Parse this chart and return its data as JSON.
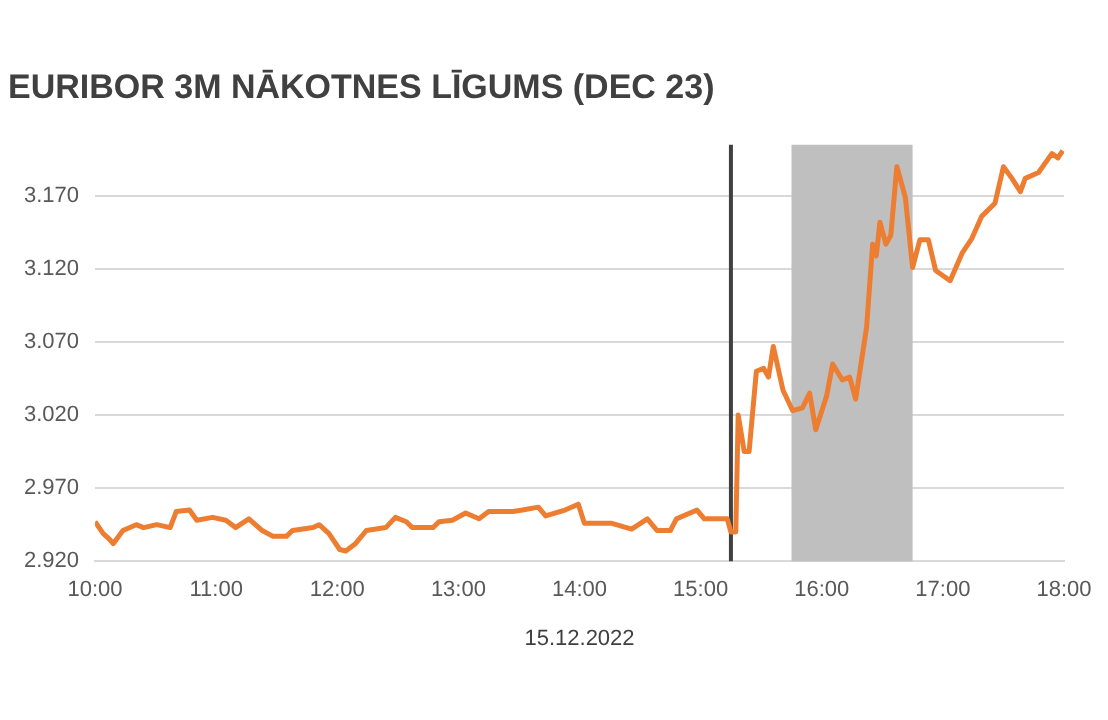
{
  "chart_data": {
    "type": "line",
    "title": "EURIBOR 3M NĀKOTNES LĪGUMS (DEC 23)",
    "xlabel": "15.12.2022",
    "x": [
      10.0,
      10.066,
      10.12,
      10.15,
      10.23,
      10.34,
      10.4,
      10.51,
      10.62,
      10.67,
      10.78,
      10.84,
      10.97,
      11.08,
      11.16,
      11.27,
      11.38,
      11.47,
      11.58,
      11.63,
      11.8,
      11.85,
      11.93,
      12.02,
      12.07,
      12.15,
      12.24,
      12.4,
      12.48,
      12.57,
      12.62,
      12.79,
      12.84,
      12.95,
      13.06,
      13.17,
      13.25,
      13.45,
      13.53,
      13.66,
      13.72,
      13.88,
      13.99,
      14.04,
      14.26,
      14.43,
      14.56,
      14.64,
      14.75,
      14.8,
      14.97,
      15.03,
      15.22,
      15.25,
      15.29,
      15.31,
      15.36,
      15.4,
      15.46,
      15.52,
      15.56,
      15.6,
      15.68,
      15.76,
      15.84,
      15.9,
      15.95,
      16.04,
      16.09,
      16.17,
      16.23,
      16.28,
      16.37,
      16.42,
      16.45,
      16.48,
      16.53,
      16.57,
      16.62,
      16.69,
      16.75,
      16.81,
      16.88,
      16.94,
      17.06,
      17.16,
      17.24,
      17.32,
      17.43,
      17.5,
      17.57,
      17.64,
      17.68,
      17.79,
      17.9,
      17.95,
      17.99
    ],
    "series": [
      {
        "color": "#ed7d31",
        "values": [
          2.947,
          2.939,
          2.935,
          2.932,
          2.941,
          2.945,
          2.943,
          2.945,
          2.943,
          2.954,
          2.955,
          2.948,
          2.95,
          2.948,
          2.943,
          2.949,
          2.941,
          2.937,
          2.937,
          2.941,
          2.943,
          2.945,
          2.939,
          2.928,
          2.927,
          2.932,
          2.941,
          2.943,
          2.95,
          2.947,
          2.943,
          2.943,
          2.947,
          2.948,
          2.953,
          2.949,
          2.954,
          2.954,
          2.955,
          2.957,
          2.951,
          2.955,
          2.959,
          2.946,
          2.946,
          2.942,
          2.949,
          2.941,
          2.941,
          2.949,
          2.955,
          2.949,
          2.949,
          2.94,
          2.94,
          3.02,
          2.995,
          2.995,
          3.05,
          3.052,
          3.046,
          3.067,
          3.037,
          3.023,
          3.025,
          3.035,
          3.01,
          3.033,
          3.055,
          3.044,
          3.046,
          3.031,
          3.08,
          3.137,
          3.129,
          3.152,
          3.137,
          3.143,
          3.19,
          3.169,
          3.121,
          3.14,
          3.14,
          3.119,
          3.112,
          3.131,
          3.141,
          3.156,
          3.165,
          3.19,
          3.182,
          3.173,
          3.182,
          3.186,
          3.199,
          3.196,
          3.201
        ]
      }
    ],
    "xlim": [
      10,
      18
    ],
    "xticks": [
      {
        "value": 10,
        "label": "10:00"
      },
      {
        "value": 11,
        "label": "11:00"
      },
      {
        "value": 12,
        "label": "12:00"
      },
      {
        "value": 13,
        "label": "13:00"
      },
      {
        "value": 14,
        "label": "14:00"
      },
      {
        "value": 15,
        "label": "15:00"
      },
      {
        "value": 16,
        "label": "16:00"
      },
      {
        "value": 17,
        "label": "17:00"
      },
      {
        "value": 18,
        "label": "18:00"
      }
    ],
    "ylim": [
      2.92,
      3.205
    ],
    "yticks": [
      {
        "value": 2.92,
        "label": "2.920"
      },
      {
        "value": 2.97,
        "label": "2.970"
      },
      {
        "value": 3.02,
        "label": "3.020"
      },
      {
        "value": 3.07,
        "label": "3.070"
      },
      {
        "value": 3.12,
        "label": "3.120"
      },
      {
        "value": 3.17,
        "label": "3.170"
      }
    ],
    "ref_lines": [
      {
        "axis": "x",
        "value": 15.25,
        "color": "#404040"
      }
    ],
    "bands": [
      {
        "axis": "x",
        "from": 15.75,
        "to": 16.75,
        "color": "#bfbfbf"
      }
    ],
    "grid": "y",
    "marker": "none",
    "line_style": "solid",
    "legend": false
  }
}
